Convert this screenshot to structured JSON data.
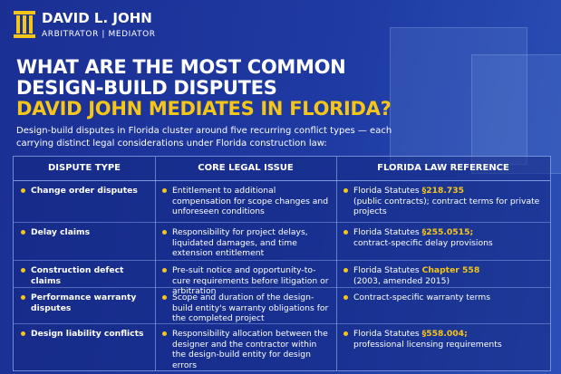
{
  "header": {
    "name": "DAVID L. JOHN",
    "role": "ARBITRATOR | MEDIATOR"
  },
  "title": {
    "line1": "WHAT ARE THE MOST COMMON",
    "line2": "DESIGN-BUILD DISPUTES",
    "line3": "DAVID JOHN MEDIATES IN FLORIDA?"
  },
  "intro": "Design-build disputes in Florida cluster around five recurring conflict types — each carrying distinct legal considerations under Florida construction law:",
  "table": {
    "columns": [
      "DISPUTE TYPE",
      "CORE LEGAL ISSUE",
      "FLORIDA LAW REFERENCE"
    ],
    "rows": [
      [
        "Change order disputes",
        "Entitlement to additional compensation for scope changes and unforeseen conditions",
        {
          "before": "Florida Statutes ",
          "highlight": "§218.735",
          "after": "(public contracts); contract terms for private projects"
        }
      ],
      [
        "Delay claims",
        "Responsibility for project delays, liquidated damages, and time extension entitlement",
        {
          "before": "Florida Statutes ",
          "highlight": "§255.0515;",
          "after": "contract-specific delay provisions"
        }
      ],
      [
        "Construction defect claims",
        "Pre-suit notice and opportunity-to-cure requirements before litigation or arbitration",
        {
          "before": "Florida Statutes ",
          "highlight": "Chapter 558",
          "after": "(2003, amended 2015)"
        }
      ],
      [
        "Performance warranty disputes",
        "Scope and duration of the design-build entity's warranty obligations for the completed project",
        {
          "before": "Contract-specific warranty terms"
        }
      ],
      [
        "Design liability conflicts",
        "Responsibility allocation between the designer and the contractor within the design-build entity for design errors",
        {
          "before": "Florida Statutes ",
          "highlight": "§558.004;",
          "after": "professional licensing requirements"
        }
      ]
    ]
  }
}
